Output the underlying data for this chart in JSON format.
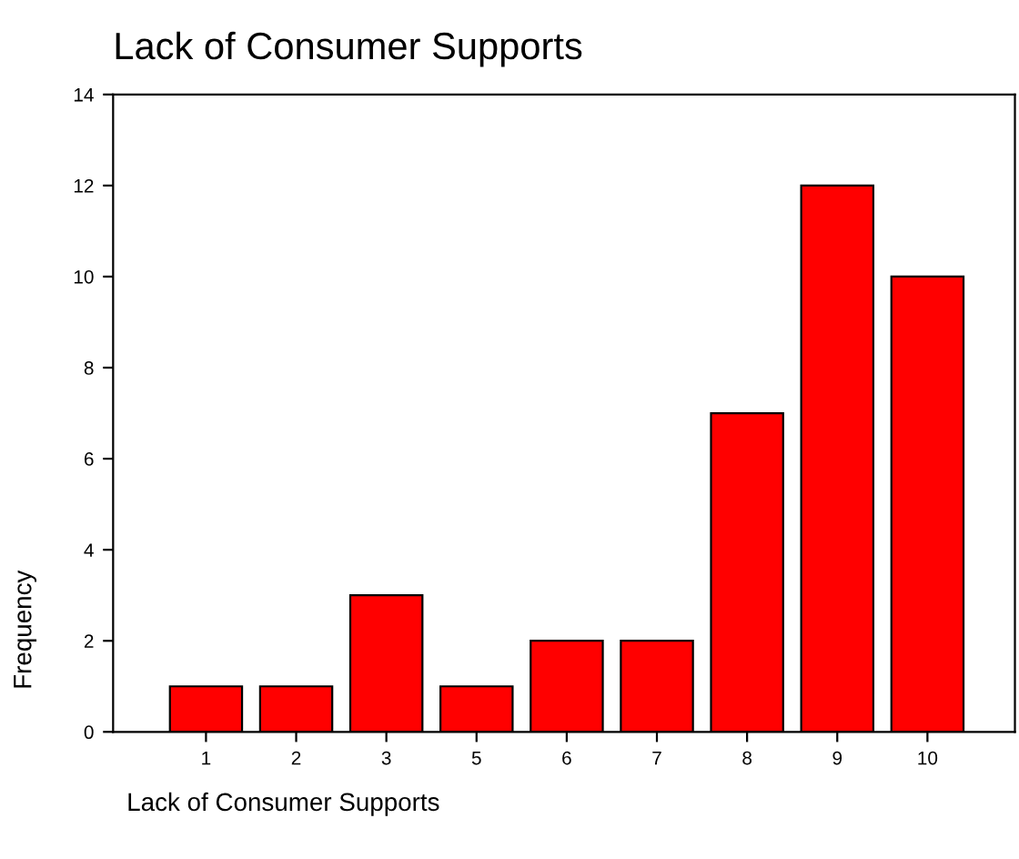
{
  "chart_data": {
    "type": "bar",
    "title": "Lack of Consumer Supports",
    "xlabel": "Lack of Consumer Supports",
    "ylabel": "Frequency",
    "categories": [
      "1",
      "2",
      "3",
      "5",
      "6",
      "7",
      "8",
      "9",
      "10"
    ],
    "values": [
      1,
      1,
      3,
      1,
      2,
      2,
      7,
      12,
      10
    ],
    "color": "#ff0000",
    "ylim": [
      0,
      14
    ],
    "yticks": [
      0,
      2,
      4,
      6,
      8,
      10,
      12,
      14
    ],
    "grid": false,
    "legend": false
  }
}
